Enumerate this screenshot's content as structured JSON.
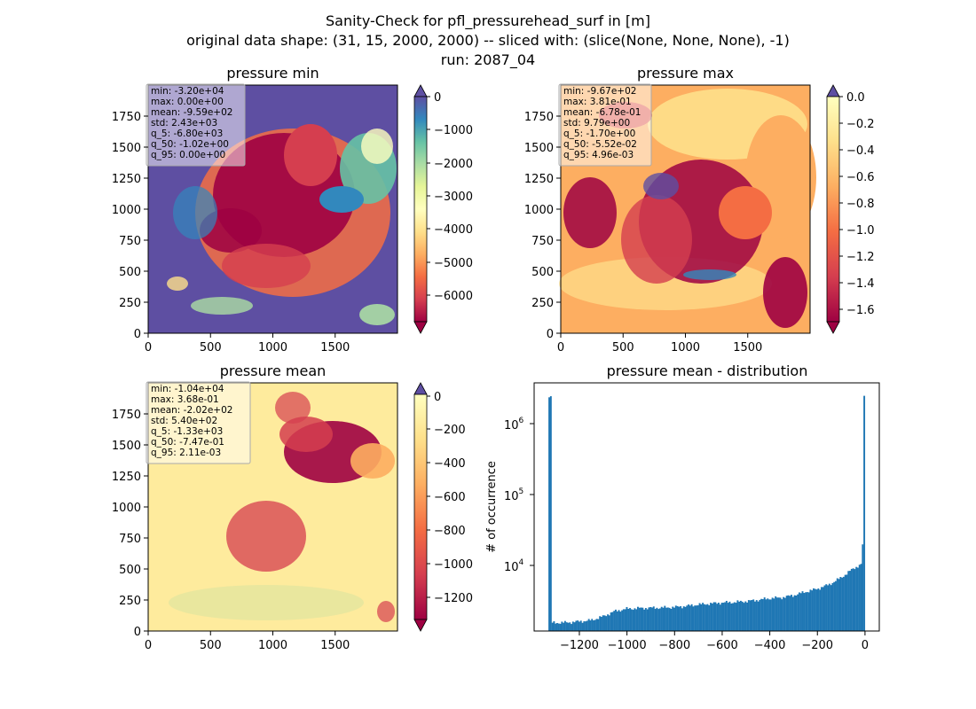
{
  "figure": {
    "title_lines": [
      "Sanity-Check for pfl_pressurehead_surf in [m]",
      "original data shape: (31, 15, 2000, 2000) -- sliced with: (slice(None, None, None), -1)",
      "run: 2087_04"
    ]
  },
  "chart_data": [
    {
      "type": "heatmap",
      "title": "pressure min",
      "colormap": "Spectral",
      "colorbar_extend": "both",
      "xlim": [
        0,
        2000
      ],
      "ylim": [
        0,
        2000
      ],
      "xticks": [
        0,
        500,
        1000,
        1500
      ],
      "yticks": [
        0,
        250,
        500,
        750,
        1000,
        1250,
        1500,
        1750
      ],
      "colorbar_range": [
        -6900,
        0
      ],
      "colorbar_ticks": [
        "0",
        "−1000",
        "−2000",
        "−3000",
        "−4000",
        "−5000",
        "−6000"
      ],
      "stats_box": [
        "min: -3.20e+04",
        "max: 0.00e+00",
        "mean: -9.59e+02",
        "std: 2.43e+03",
        "q_5: -6.80e+03",
        "q_50: -1.02e+00",
        "q_95: 0.00e+00"
      ],
      "stats": {
        "min": -32000,
        "max": 0.0,
        "mean": -959,
        "std": 2430,
        "q_5": -6800,
        "q_50": -1.02,
        "q_95": 0.0
      }
    },
    {
      "type": "heatmap",
      "title": "pressure max",
      "colormap": "Spectral",
      "colorbar_extend": "both",
      "xlim": [
        0,
        2000
      ],
      "ylim": [
        0,
        2000
      ],
      "xticks": [
        0,
        500,
        1000,
        1500
      ],
      "yticks": [
        0,
        250,
        500,
        750,
        1000,
        1250,
        1500,
        1750
      ],
      "colorbar_range": [
        -1.7,
        0.0
      ],
      "colorbar_ticks": [
        "0.0",
        "−0.2",
        "−0.4",
        "−0.6",
        "−0.8",
        "−1.0",
        "−1.2",
        "−1.4",
        "−1.6"
      ],
      "stats_box": [
        "min: -9.67e+02",
        "max: 3.81e-01",
        "mean: -6.78e-01",
        "std: 9.79e+00",
        "q_5: -1.70e+00",
        "q_50: -5.52e-02",
        "q_95: 4.96e-03"
      ],
      "stats": {
        "min": -967,
        "max": 0.381,
        "mean": -0.678,
        "std": 9.79,
        "q_5": -1.7,
        "q_50": -0.0552,
        "q_95": 0.00496
      }
    },
    {
      "type": "heatmap",
      "title": "pressure mean",
      "colormap": "Spectral",
      "colorbar_extend": "both",
      "xlim": [
        0,
        2000
      ],
      "ylim": [
        0,
        2000
      ],
      "xticks": [
        0,
        500,
        1000,
        1500
      ],
      "yticks": [
        0,
        250,
        500,
        750,
        1000,
        1250,
        1500,
        1750
      ],
      "colorbar_range": [
        -1330,
        0
      ],
      "colorbar_ticks": [
        "0",
        "−200",
        "−400",
        "−600",
        "−800",
        "−1000",
        "−1200"
      ],
      "stats_box": [
        "min: -1.04e+04",
        "max: 3.68e-01",
        "mean: -2.02e+02",
        "std: 5.40e+02",
        "q_5: -1.33e+03",
        "q_50: -7.47e-01",
        "q_95: 2.11e-03"
      ],
      "stats": {
        "min": -10400,
        "max": 0.368,
        "mean": -202,
        "std": 540,
        "q_5": -1330,
        "q_50": -0.747,
        "q_95": 0.00211
      }
    },
    {
      "type": "bar",
      "title": "pressure mean - distribution",
      "ylabel": "# of occurrence",
      "xlabel": "",
      "yscale": "log",
      "color": "#1f77b4",
      "xlim": [
        -1390,
        60
      ],
      "ylim": [
        1300,
        4500000
      ],
      "xticks": [
        "−1200",
        "−1000",
        "−800",
        "−600",
        "−400",
        "−200",
        "0"
      ],
      "yticks": [
        "10^4",
        "10^5",
        "10^6"
      ],
      "bins_range": [
        -1330,
        0
      ],
      "bin_counts_sampled": {
        "x": [
          -1320,
          -1250,
          -1200,
          -1150,
          -1100,
          -1050,
          -1000,
          -950,
          -900,
          -850,
          -800,
          -750,
          -700,
          -650,
          -600,
          -550,
          -500,
          -450,
          -400,
          -350,
          -300,
          -250,
          -200,
          -150,
          -100,
          -60,
          -30,
          -10,
          -3,
          0
        ],
        "y": [
          1700,
          1720,
          1780,
          1850,
          2100,
          2500,
          2700,
          2750,
          2780,
          2800,
          2850,
          2950,
          3100,
          3200,
          3300,
          3350,
          3450,
          3600,
          3800,
          3900,
          4200,
          4700,
          5200,
          6000,
          7500,
          9500,
          11000,
          12000,
          22000,
          2800000
        ]
      }
    }
  ]
}
